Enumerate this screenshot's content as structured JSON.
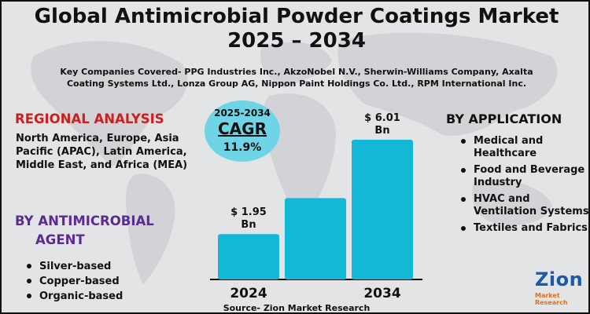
{
  "header": {
    "title_line1": "Global Antimicrobial Powder Coatings Market",
    "title_line2": "2025 – 2034",
    "subtitle": "Key Companies Covered- PPG Industries Inc., AkzoNobel N.V., Sherwin-Williams Company, Axalta Coating Systems Ltd., Lonza Group AG, Nippon Paint Holdings Co. Ltd., RPM International Inc."
  },
  "regional": {
    "heading": "REGIONAL ANALYSIS",
    "text": "North America, Europe, Asia Pacific (APAC), Latin America, Middle East, and Africa (MEA)"
  },
  "agent": {
    "heading_line1": "BY ANTIMICROBIAL",
    "heading_line2": "AGENT",
    "items": [
      "Silver-based",
      "Copper-based",
      "Organic-based"
    ]
  },
  "application": {
    "heading": "BY APPLICATION",
    "items": [
      "Medical and Healthcare",
      "Food and Beverage Industry",
      "HVAC and Ventilation Systems",
      "Textiles and Fabrics"
    ]
  },
  "cagr": {
    "years": "2025-2034",
    "label": "CAGR",
    "value": "11.9%"
  },
  "chart_data": {
    "type": "bar",
    "categories": [
      "2024",
      "",
      "2034"
    ],
    "values": [
      1.95,
      3.5,
      6.01
    ],
    "data_labels": [
      "$ 1.95 Bn",
      "",
      "$ 6.01 Bn"
    ],
    "bar_color": "#13b8d6",
    "grid": false
  },
  "footer": {
    "source": "Source- Zion Market Research"
  },
  "logo": {
    "name": "Zion",
    "sub": "Market Research",
    "color": "#1c5aa6",
    "accent": "#e36f1e"
  }
}
